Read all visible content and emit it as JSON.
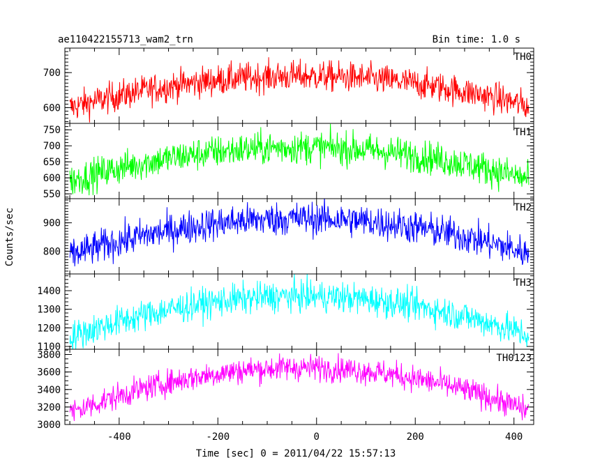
{
  "header": {
    "title": "ae110422155713_wam2_trn",
    "bin_time": "Bin time: 1.0 s"
  },
  "chart_data": {
    "type": "line",
    "xlabel": "Time [sec] 0 = 2011/04/22 15:57:13",
    "ylabel": "Counts/sec",
    "xlim": [
      -510,
      440
    ],
    "xticks": [
      -400,
      -200,
      0,
      200,
      400
    ],
    "x_range": [
      -500,
      430
    ],
    "series": [
      {
        "name": "TH0",
        "color": "#ff0000",
        "ylim": [
          555,
          770
        ],
        "yticks": [
          600,
          700
        ],
        "base": 600,
        "peak": 690,
        "noise": 22
      },
      {
        "name": "TH1",
        "color": "#00ff00",
        "ylim": [
          535,
          770
        ],
        "yticks": [
          550,
          600,
          650,
          700,
          750
        ],
        "base": 590,
        "peak": 695,
        "noise": 26
      },
      {
        "name": "TH2",
        "color": "#0000ff",
        "ylim": [
          720,
          985
        ],
        "yticks": [
          800,
          900
        ],
        "base": 785,
        "peak": 915,
        "noise": 30
      },
      {
        "name": "TH3",
        "color": "#00ffff",
        "ylim": [
          1085,
          1490
        ],
        "yticks": [
          1100,
          1200,
          1300,
          1400
        ],
        "base": 1150,
        "peak": 1370,
        "noise": 42
      },
      {
        "name": "TH0123",
        "color": "#ff00ff",
        "ylim": [
          3000,
          3860
        ],
        "yticks": [
          3000,
          3200,
          3400,
          3600,
          3800
        ],
        "base": 3130,
        "peak": 3650,
        "noise": 75
      }
    ]
  }
}
